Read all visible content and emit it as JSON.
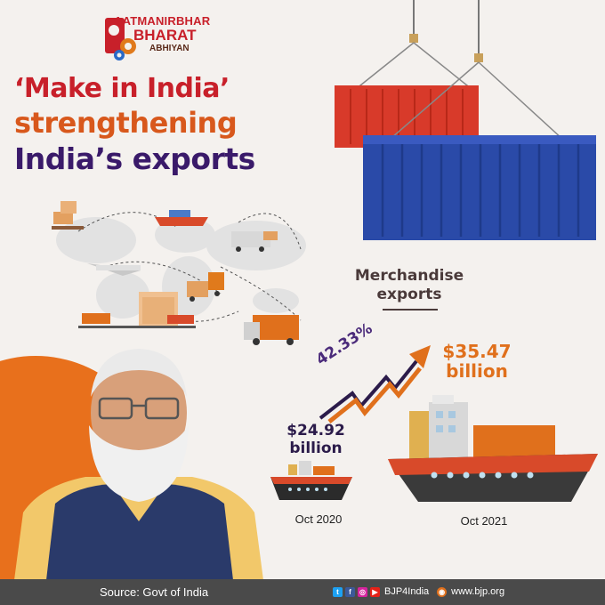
{
  "logo": {
    "line1": "AATMANIRBHAR",
    "line2": "BHARAT",
    "line3": "ABHIYAN"
  },
  "headline": {
    "line1": "‘Make in India’",
    "line2": "strengthening",
    "line3": "India’s exports"
  },
  "infographic": {
    "label": "Merchandise exports",
    "growth": "42.33%",
    "oct2020": {
      "value": "$24.92",
      "unit": "billion",
      "caption": "Oct 2020"
    },
    "oct2021": {
      "value": "$35.47",
      "unit": "billion",
      "caption": "Oct 2021"
    }
  },
  "footer": {
    "source": "Source: Govt of India",
    "handle": "BJP4India",
    "website": "www.bjp.org",
    "icons": [
      "twitter-icon",
      "facebook-icon",
      "instagram-icon",
      "youtube-icon"
    ]
  },
  "colors": {
    "red": "#c8202a",
    "orange": "#e0701c",
    "purple": "#3a1a6a",
    "container_red": "#d83a2a",
    "container_blue": "#2a4aa8",
    "footer_bg": "#4a4a4a"
  }
}
